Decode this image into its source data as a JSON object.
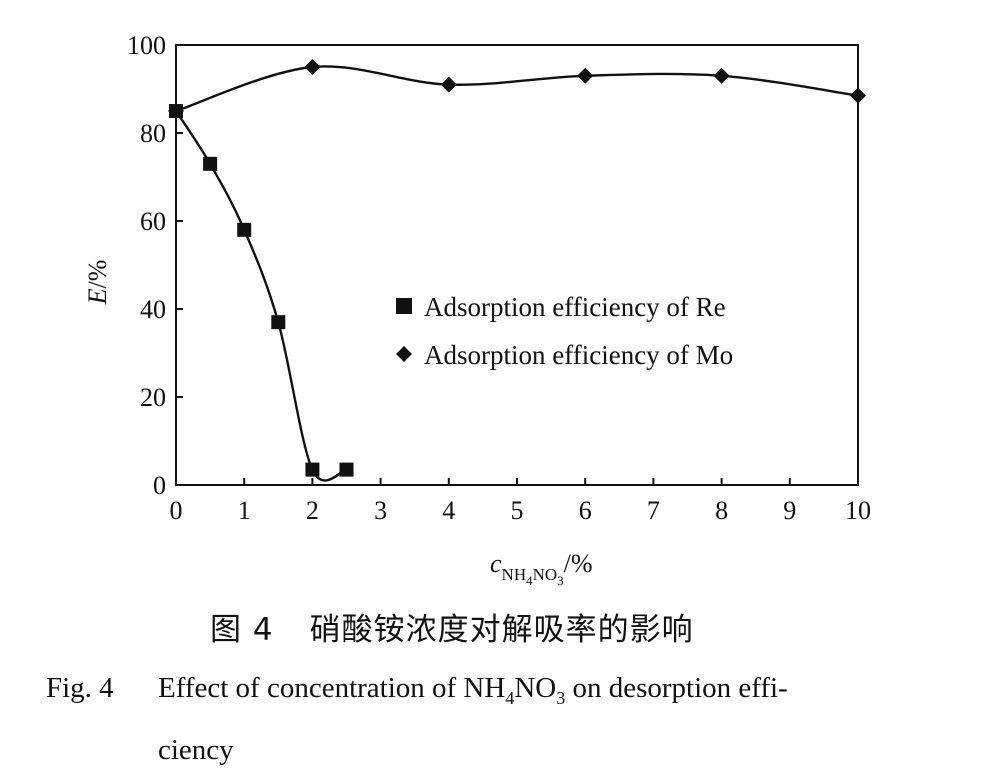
{
  "chart_data": {
    "type": "line",
    "xlabel_main": "c",
    "xlabel_sub": "NH",
    "xlabel_sub2": "4",
    "xlabel_sub3": "NO",
    "xlabel_sub4": "3",
    "xlabel_unit": "/%",
    "ylabel_main": "E",
    "ylabel_unit": "/%",
    "xlim": [
      0,
      10
    ],
    "ylim": [
      0,
      100
    ],
    "xticks": [
      0,
      1,
      2,
      3,
      4,
      5,
      6,
      7,
      8,
      9,
      10
    ],
    "yticks": [
      0,
      20,
      40,
      60,
      80,
      100
    ],
    "legend_position": "center-right",
    "series": [
      {
        "name": "Adsorption efficiency of Re",
        "marker": "square",
        "x": [
          0,
          0.5,
          1,
          1.5,
          2,
          2.5
        ],
        "y": [
          85,
          73,
          58,
          37,
          3.5,
          3.5
        ]
      },
      {
        "name": "Adsorption efficiency of Mo",
        "marker": "diamond",
        "x": [
          0,
          2,
          4,
          6,
          8,
          10
        ],
        "y": [
          85,
          95,
          91,
          93,
          93,
          88.5
        ]
      }
    ]
  },
  "caption": {
    "cn_label": "图 4",
    "cn_text": "硝酸铵浓度对解吸率的影响",
    "en_label": "Fig. 4",
    "en_text_before": "Effect of concentration of NH",
    "en_sub1": "4",
    "en_mid": "NO",
    "en_sub2": "3",
    "en_text_after": " on desorption effi-",
    "en_line2": "ciency"
  }
}
